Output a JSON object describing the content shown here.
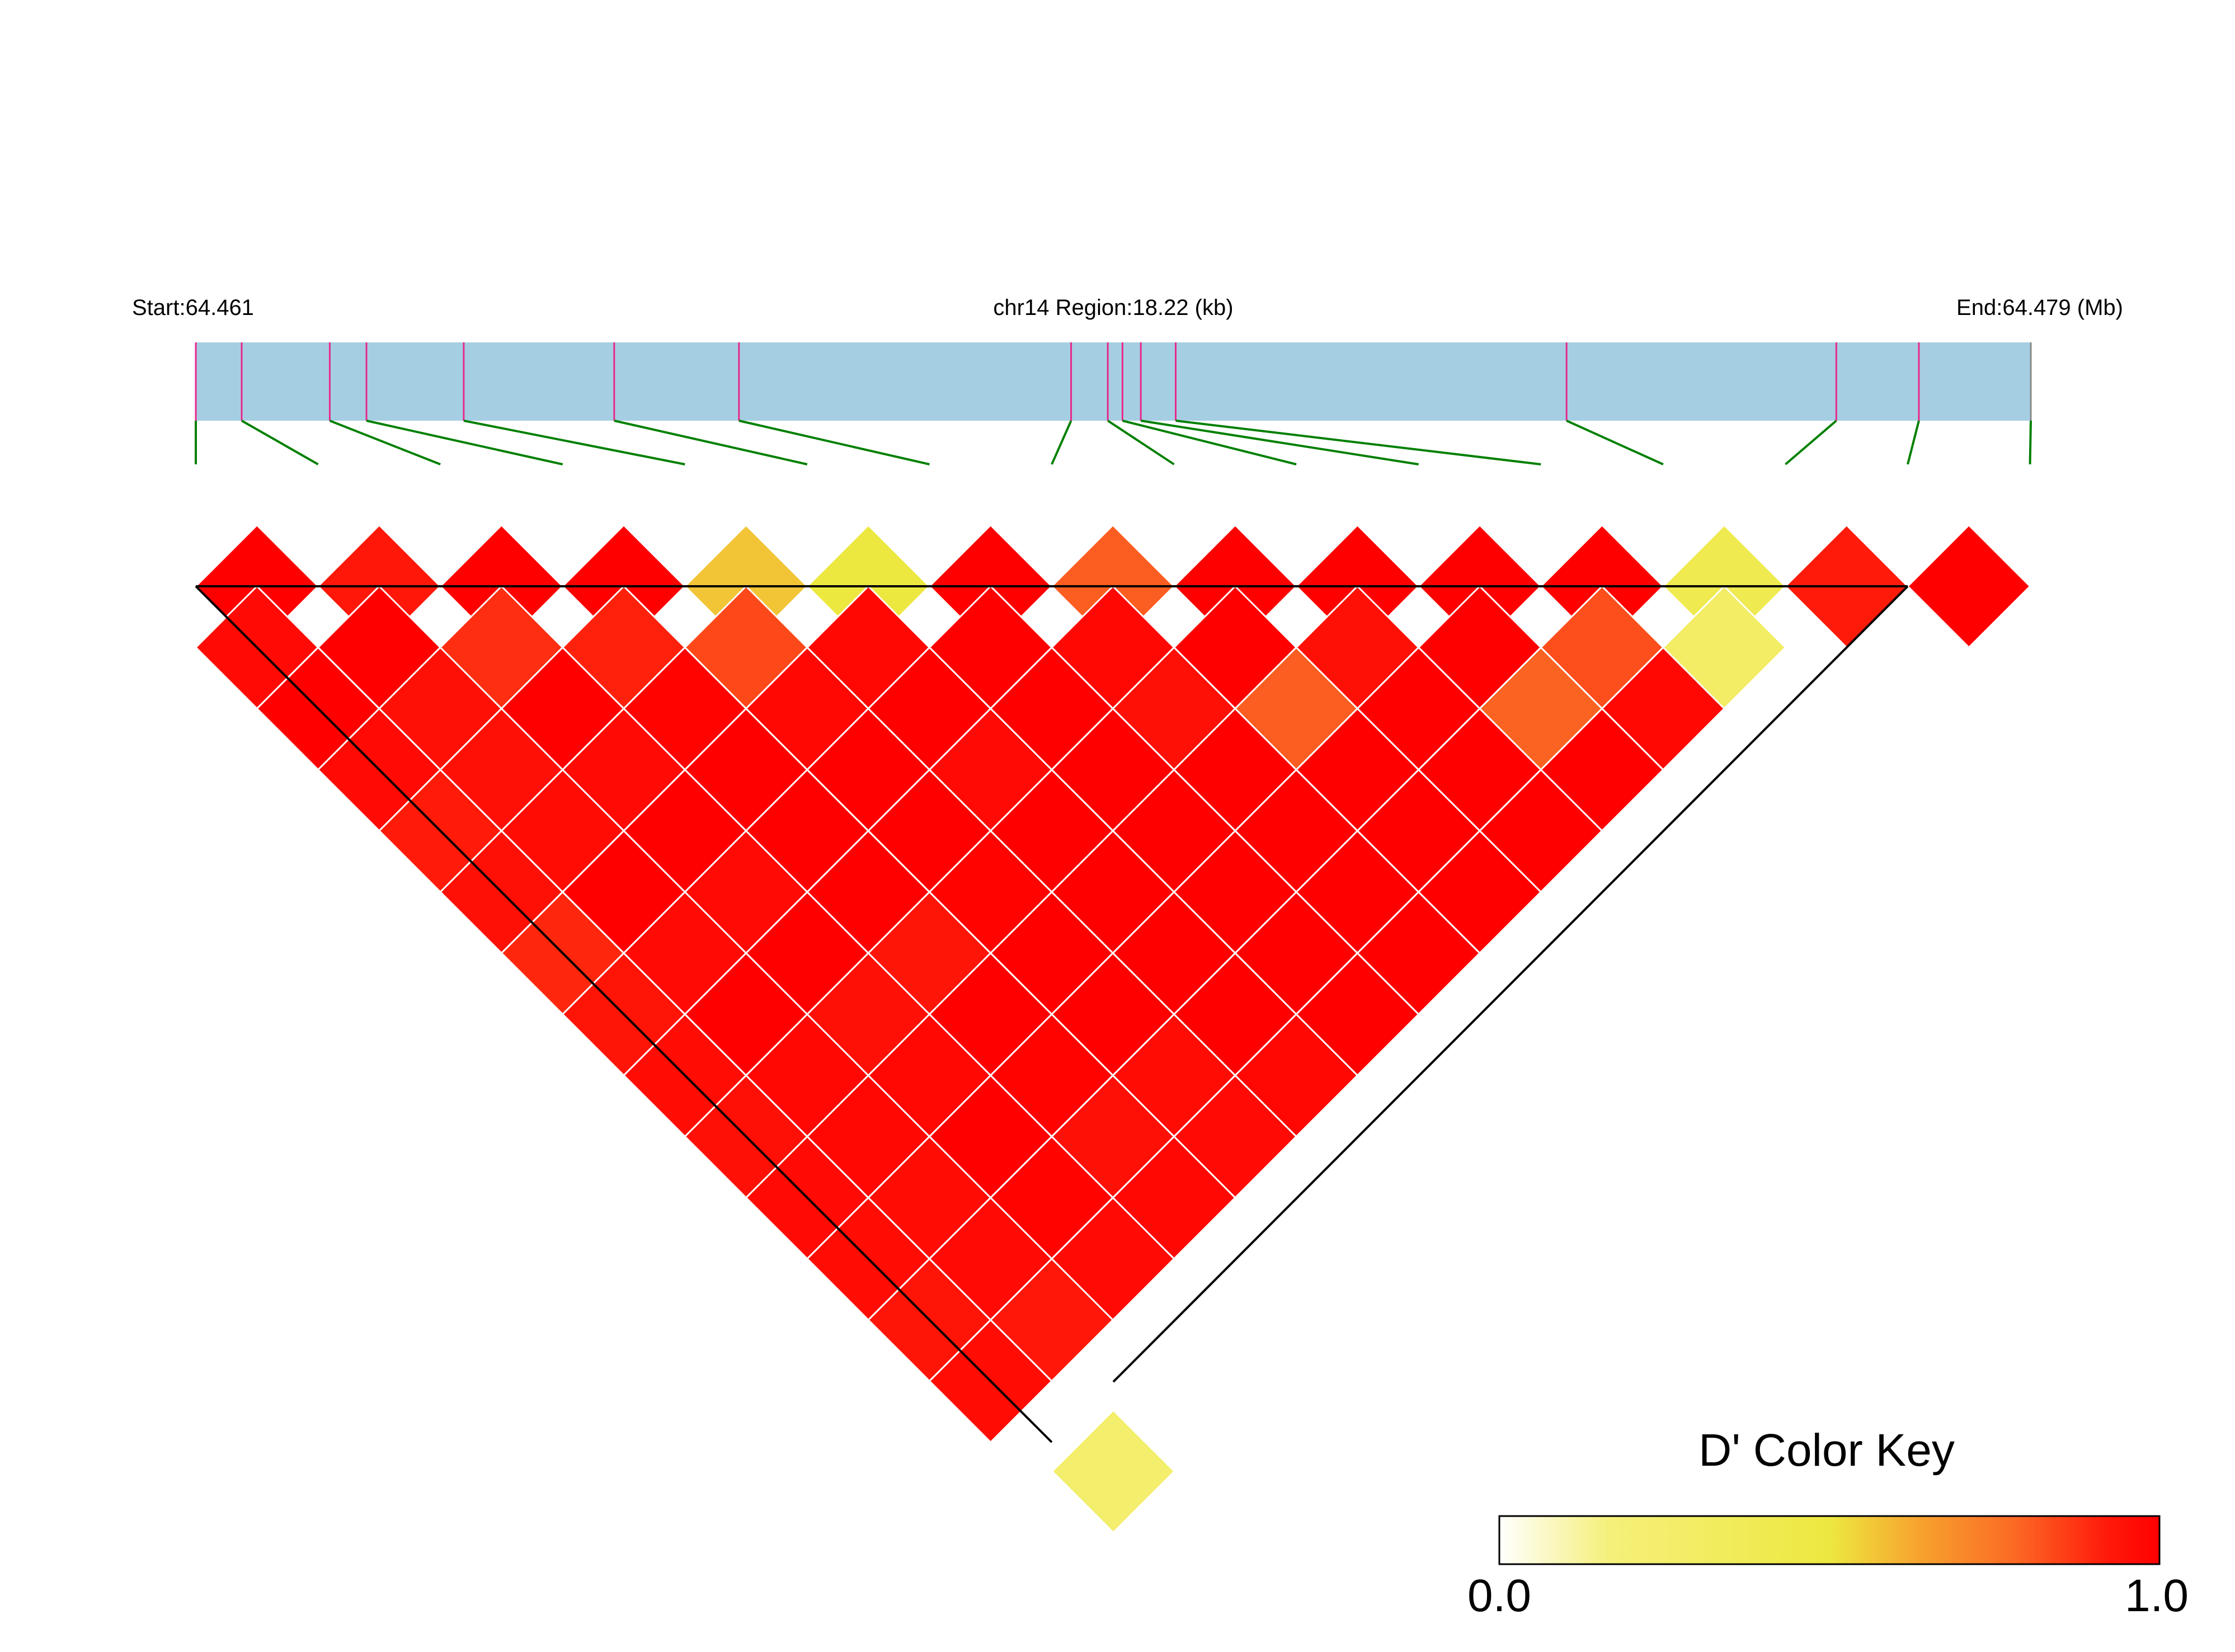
{
  "chart_data": {
    "type": "heatmap",
    "variant": "ld-triangle",
    "header": {
      "start_label": "Start:64.461",
      "region_label": "chr14 Region:18.22 (kb)",
      "end_label": "End:64.479 (Mb)"
    },
    "region_start_mb": 64.461,
    "region_end_mb": 64.479,
    "marker_positions": [
      0.0,
      0.025,
      0.073,
      0.093,
      0.146,
      0.228,
      0.296,
      0.477,
      0.497,
      0.505,
      0.515,
      0.534,
      0.747,
      0.894,
      0.939,
      1.0
    ],
    "colors": {
      "band": "#a6cee3",
      "marker_tick": "#e7298a",
      "connector": "#008000",
      "grid": "#ffffff",
      "outline": "#000000"
    },
    "d_prime": [
      [
        1.0,
        0.97,
        1.0,
        0.97,
        0.92,
        0.95,
        0.9,
        0.94,
        0.96,
        0.95,
        0.97,
        0.96,
        0.94,
        0.96
      ],
      [
        0.93,
        1.0,
        0.95,
        0.95,
        0.96,
        1.0,
        0.97,
        1.0,
        0.98,
        0.98,
        0.96,
        0.97,
        0.93
      ],
      [
        1.0,
        0.89,
        1.0,
        0.97,
        1.0,
        0.97,
        1.0,
        0.95,
        0.98,
        1.0,
        0.99,
        0.97
      ],
      [
        1.0,
        0.91,
        0.99,
        1.0,
        1.0,
        1.0,
        0.94,
        1.0,
        0.99,
        0.95,
        0.98
      ],
      [
        0.57,
        0.85,
        0.98,
        1.0,
        1.0,
        0.99,
        1.0,
        1.0,
        0.96,
        0.97
      ],
      [
        0.5,
        0.98,
        1.0,
        0.97,
        1.0,
        1.0,
        1.0,
        1.0,
        0.98
      ],
      [
        1.0,
        1.0,
        1.0,
        1.0,
        1.0,
        1.0,
        1.0,
        1.0
      ],
      [
        0.82,
        0.98,
        0.95,
        1.0,
        1.0,
        1.0,
        1.0
      ],
      [
        1.0,
        1.0,
        0.82,
        1.0,
        1.0,
        1.0
      ],
      [
        1.0,
        0.95,
        1.0,
        1.0,
        1.0
      ],
      [
        1.0,
        1.0,
        0.81,
        1.0
      ],
      [
        1.0,
        0.84,
        0.98
      ],
      [
        0.48,
        0.45
      ],
      [
        0.92
      ],
      []
    ],
    "blocks": [
      [
        0,
        7
      ],
      [
        7,
        14
      ]
    ],
    "extra_cells": [
      [
        14,
        15,
        0.44
      ]
    ],
    "color_key": {
      "title": "D' Color Key",
      "min": 0.0,
      "max": 1.0,
      "min_label": "0.0",
      "max_label": "1.0",
      "stops": [
        "#ffffff",
        "#f5f07a",
        "#ede840",
        "#f7a12e",
        "#fb6a24",
        "#ff1a0a",
        "#ff0000"
      ]
    }
  }
}
